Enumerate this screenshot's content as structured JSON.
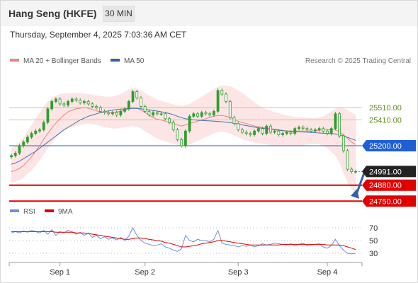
{
  "header": {
    "title": "Hang Seng (HKFE)",
    "interval": "30 MIN"
  },
  "date_line": "Thursday, September 4, 2025 7:03:36 AM CET",
  "legend": {
    "ma20": "MA 20 + Bollinger Bands",
    "ma50": "MA 50",
    "rsi": "RSI",
    "rsi_ma": "9MA"
  },
  "copyright": "Research © 2025 Trading Central",
  "colors": {
    "ma20": "#f08080",
    "ma50": "#4a6fb4",
    "bollinger_fill": "#fde1e1",
    "candle": "#2e9e2e",
    "resistance": "#b7d38c",
    "pivot": "#1f5fd6",
    "support": "#e00000",
    "rsi": "#6d8fe0",
    "rsi_ma": "#e00000",
    "arrow": "#3560a8"
  },
  "chart_data": {
    "type": "line",
    "title": "Hang Seng (HKFE)",
    "x_ticks": [
      "Sep 1",
      "Sep 2",
      "Sep 3",
      "Sep 4"
    ],
    "ylim": [
      24700,
      25850
    ],
    "levels": [
      {
        "label": "25510.00",
        "value": 25510,
        "kind": "resistance"
      },
      {
        "label": "25410.00",
        "value": 25410,
        "kind": "resistance"
      },
      {
        "label": "25200.00",
        "value": 25200,
        "kind": "pivot"
      },
      {
        "label": "24991.00",
        "value": 24991,
        "kind": "last"
      },
      {
        "label": "24880.00",
        "value": 24880,
        "kind": "support"
      },
      {
        "label": "24750.00",
        "value": 24750,
        "kind": "support"
      }
    ],
    "price": [
      25120,
      25140,
      25200,
      25230,
      25270,
      25300,
      25320,
      25330,
      25390,
      25500,
      25560,
      25580,
      25540,
      25530,
      25560,
      25580,
      25570,
      25550,
      25560,
      25540,
      25520,
      25510,
      25480,
      25470,
      25460,
      25470,
      25450,
      25480,
      25500,
      25560,
      25640,
      25590,
      25520,
      25480,
      25450,
      25470,
      25460,
      25460,
      25420,
      25390,
      25330,
      25250,
      25200,
      25320,
      25440,
      25460,
      25440,
      25470,
      25460,
      25450,
      25480,
      25650,
      25620,
      25560,
      25430,
      25380,
      25330,
      25310,
      25300,
      25290,
      25320,
      25340,
      25300,
      25360,
      25310,
      25320,
      25290,
      25300,
      25310,
      25300,
      25340,
      25350,
      25340,
      25330,
      25320,
      25330,
      25340,
      25320,
      25300,
      25340,
      25460,
      25280,
      25160,
      25010,
      24990,
      24991
    ],
    "ma20": [
      24990,
      25000,
      25015,
      25040,
      25075,
      25110,
      25155,
      25200,
      25255,
      25300,
      25345,
      25385,
      25420,
      25450,
      25475,
      25490,
      25500,
      25505,
      25510,
      25505,
      25495,
      25485,
      25475,
      25470,
      25470,
      25470,
      25475,
      25480,
      25490,
      25500,
      25510,
      25505,
      25490,
      25470,
      25450,
      25430,
      25415,
      25410,
      25400,
      25390,
      25380,
      25370,
      25360,
      25370,
      25380,
      25390,
      25400,
      25410,
      25420,
      25430,
      25440,
      25445,
      25445,
      25440,
      25430,
      25415,
      25400,
      25390,
      25380,
      25370,
      25360,
      25355,
      25350,
      25345,
      25340,
      25335,
      25330,
      25325,
      25320,
      25320,
      25320,
      25320,
      25320,
      25320,
      25320,
      25320,
      25325,
      25330,
      25330,
      25330,
      25330,
      25315,
      25290,
      25260,
      25230,
      25210
    ],
    "ma50": [
      25050,
      25060,
      25075,
      25095,
      25115,
      25135,
      25155,
      25180,
      25205,
      25230,
      25255,
      25280,
      25305,
      25330,
      25350,
      25370,
      25390,
      25410,
      25425,
      25440,
      25450,
      25460,
      25470,
      25478,
      25484,
      25490,
      25494,
      25498,
      25500,
      25502,
      25503,
      25503,
      25500,
      25496,
      25492,
      25488,
      25482,
      25476,
      25470,
      25462,
      25452,
      25440,
      25428,
      25420,
      25415,
      25410,
      25408,
      25406,
      25404,
      25402,
      25400,
      25398,
      25396,
      25392,
      25388,
      25382,
      25376,
      25370,
      25364,
      25358,
      25352,
      25346,
      25342,
      25338,
      25334,
      25330,
      25326,
      25322,
      25320,
      25318,
      25316,
      25314,
      25312,
      25310,
      25308,
      25306,
      25304,
      25302,
      25300,
      25298,
      25296,
      25290,
      25280,
      25268,
      25256,
      25244
    ],
    "bb_upper": [
      25180,
      25200,
      25230,
      25270,
      25320,
      25370,
      25420,
      25470,
      25520,
      25560,
      25590,
      25610,
      25620,
      25625,
      25628,
      25630,
      25630,
      25628,
      25625,
      25620,
      25615,
      25610,
      25605,
      25600,
      25598,
      25600,
      25610,
      25620,
      25640,
      25660,
      25670,
      25665,
      25650,
      25630,
      25610,
      25590,
      25575,
      25565,
      25555,
      25545,
      25535,
      25530,
      25525,
      25530,
      25540,
      25560,
      25580,
      25600,
      25620,
      25640,
      25660,
      25680,
      25690,
      25690,
      25685,
      25670,
      25650,
      25630,
      25605,
      25580,
      25555,
      25530,
      25510,
      25495,
      25485,
      25475,
      25465,
      25455,
      25445,
      25440,
      25435,
      25432,
      25430,
      25428,
      25425,
      25425,
      25430,
      25440,
      25460,
      25480,
      25500,
      25510,
      25505,
      25490,
      25470,
      25450
    ],
    "bb_lower": [
      24900,
      24910,
      24920,
      24940,
      24970,
      25000,
      25040,
      25080,
      25130,
      25180,
      25220,
      25260,
      25300,
      25320,
      25340,
      25350,
      25360,
      25370,
      25375,
      25380,
      25375,
      25370,
      25360,
      25350,
      25345,
      25340,
      25340,
      25345,
      25350,
      25355,
      25360,
      25355,
      25340,
      25320,
      25300,
      25280,
      25260,
      25245,
      25235,
      25225,
      25215,
      25205,
      25195,
      25200,
      25210,
      25225,
      25240,
      25255,
      25270,
      25285,
      25300,
      25310,
      25315,
      25310,
      25300,
      25285,
      25270,
      25255,
      25245,
      25235,
      25225,
      25220,
      25215,
      25210,
      25205,
      25200,
      25198,
      25196,
      25195,
      25195,
      25198,
      25200,
      25205,
      25210,
      25215,
      25215,
      25210,
      25200,
      25180,
      25150,
      25120,
      25060,
      24980,
      24900,
      24850,
      24820
    ],
    "rsi": {
      "ticks": [
        70,
        50,
        30
      ],
      "ylim": [
        20,
        80
      ],
      "values": [
        62,
        64,
        62,
        65,
        63,
        66,
        64,
        62,
        66,
        60,
        67,
        58,
        64,
        62,
        66,
        64,
        60,
        63,
        58,
        62,
        55,
        58,
        53,
        56,
        52,
        54,
        51,
        55,
        50,
        57,
        70,
        58,
        50,
        46,
        44,
        42,
        43,
        45,
        40,
        38,
        35,
        33,
        37,
        58,
        50,
        48,
        52,
        50,
        50,
        48,
        52,
        66,
        46,
        44,
        43,
        42,
        40,
        42,
        41,
        43,
        40,
        42,
        45,
        43,
        44,
        46,
        45,
        44,
        43,
        45,
        42,
        44,
        46,
        42,
        43,
        44,
        45,
        40,
        38,
        42,
        52,
        42,
        35,
        30,
        29,
        30
      ],
      "ma": [
        64,
        64,
        64,
        64,
        64,
        64,
        64,
        64,
        64,
        64,
        64,
        63,
        63,
        63,
        63,
        63,
        62,
        62,
        62,
        61,
        60,
        59,
        58,
        57,
        56,
        55,
        54,
        53,
        52,
        52,
        53,
        54,
        54,
        53,
        52,
        51,
        50,
        49,
        47,
        46,
        44,
        42,
        40,
        40,
        41,
        42,
        43,
        45,
        46,
        47,
        48,
        50,
        50,
        49,
        48,
        47,
        46,
        45,
        44,
        43,
        43,
        43,
        43,
        43,
        43,
        43,
        43,
        44,
        44,
        44,
        44,
        44,
        44,
        44,
        44,
        44,
        44,
        44,
        43,
        43,
        43,
        43,
        42,
        40,
        38,
        36
      ]
    }
  }
}
